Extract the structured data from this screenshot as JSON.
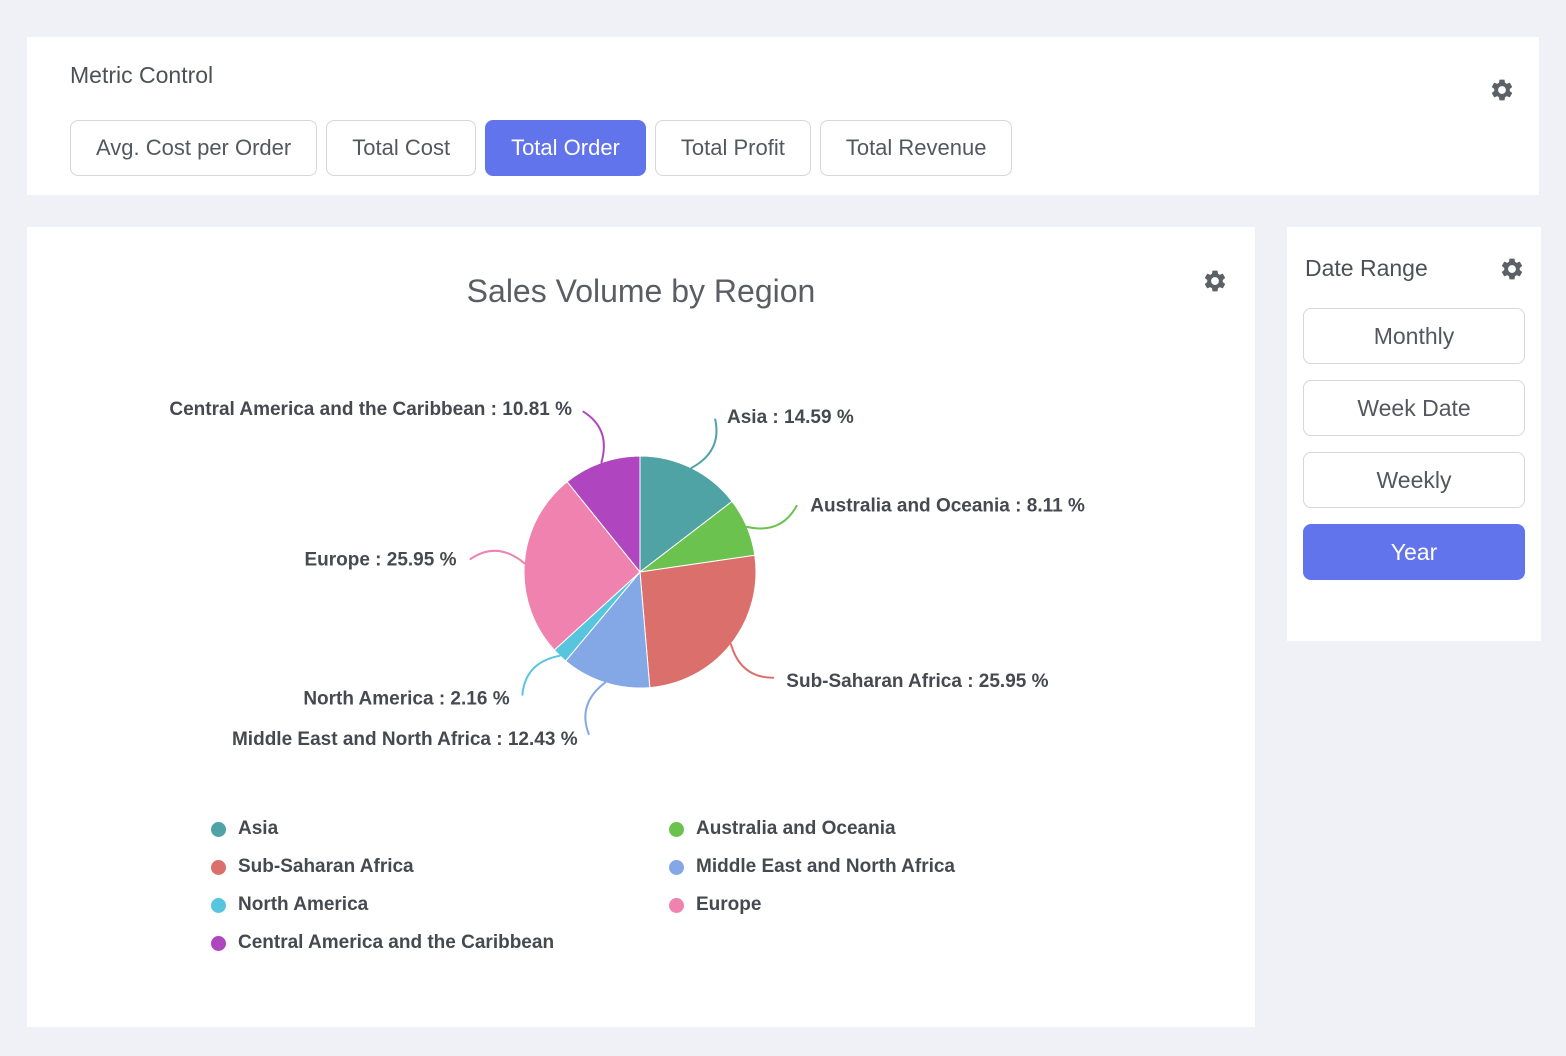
{
  "app": {
    "background_color": "#f0f1f6",
    "accent_color": "#6274EC",
    "button_border_color": "#d6d6db"
  },
  "metric_control": {
    "title": "Metric Control",
    "settings_icon": "gear-icon",
    "buttons": [
      {
        "label": "Avg. Cost per Order",
        "selected": false
      },
      {
        "label": "Total Cost",
        "selected": false
      },
      {
        "label": "Total Order",
        "selected": true
      },
      {
        "label": "Total Profit",
        "selected": false
      },
      {
        "label": "Total Revenue",
        "selected": false
      }
    ]
  },
  "date_range": {
    "title": "Date Range",
    "settings_icon": "gear-icon",
    "buttons": [
      {
        "label": "Monthly",
        "selected": false
      },
      {
        "label": "Week Date",
        "selected": false
      },
      {
        "label": "Weekly",
        "selected": false
      },
      {
        "label": "Year",
        "selected": true
      }
    ]
  },
  "chart_data": {
    "type": "pie",
    "title": "Sales Volume by Region",
    "settings_icon": "gear-icon",
    "value_unit": "%",
    "label_format": "{name} : {value} %",
    "legend_position": "bottom",
    "slices": [
      {
        "name": "Asia",
        "value": 14.59,
        "color": "#4FA3A5"
      },
      {
        "name": "Australia and Oceania",
        "value": 8.11,
        "color": "#6CC24F"
      },
      {
        "name": "Sub-Saharan Africa",
        "value": 25.95,
        "color": "#DB6F6C"
      },
      {
        "name": "Middle East and North Africa",
        "value": 12.43,
        "color": "#84A7E5"
      },
      {
        "name": "North America",
        "value": 2.16,
        "color": "#57C5DD"
      },
      {
        "name": "Europe",
        "value": 25.95,
        "color": "#EF82AE"
      },
      {
        "name": "Central America and the Caribbean",
        "value": 10.81,
        "color": "#AF46C0"
      }
    ],
    "legend_columns": [
      [
        "Asia",
        "Sub-Saharan Africa",
        "North America",
        "Central America and the Caribbean"
      ],
      [
        "Australia and Oceania",
        "Middle East and North Africa",
        "Europe"
      ]
    ]
  }
}
